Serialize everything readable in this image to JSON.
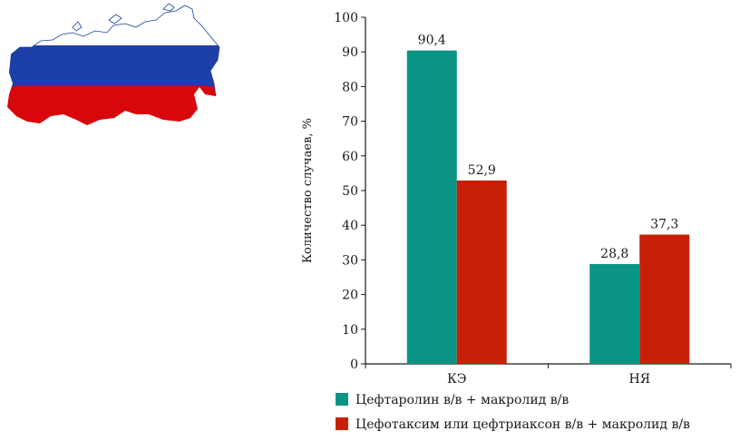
{
  "decor": {
    "flag_colors": [
      "#ffffff",
      "#1d3fa8",
      "#d8070b"
    ]
  },
  "chart_data": {
    "type": "bar",
    "categories": [
      "КЭ",
      "НЯ"
    ],
    "series": [
      {
        "name": "Цефтаролин в/в + макролид в/в",
        "values": [
          90.4,
          28.8
        ],
        "labels": [
          "90,4",
          "28,8"
        ],
        "color": "#0a9484"
      },
      {
        "name": "Цефотаксим или цефтриаксон в/в + макролид в/в",
        "values": [
          52.9,
          37.3
        ],
        "labels": [
          "52,9",
          "37,3"
        ],
        "color": "#c82006"
      }
    ],
    "ylabel": "Количество случаев, %",
    "xlabel": "",
    "ylim": [
      0,
      100
    ],
    "yticks": [
      0,
      10,
      20,
      30,
      40,
      50,
      60,
      70,
      80,
      90,
      100
    ],
    "grid": false,
    "legend_position": "bottom"
  }
}
